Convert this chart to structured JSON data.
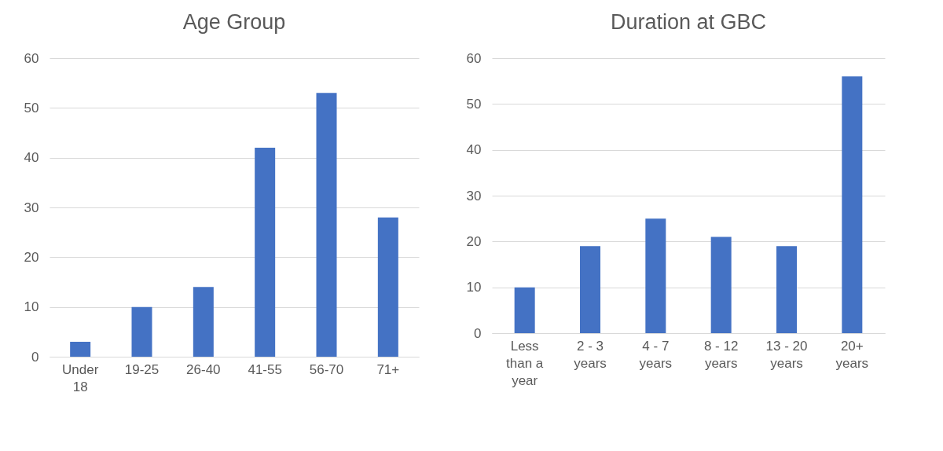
{
  "chart_data": [
    {
      "type": "bar",
      "title": "Age Group",
      "categories": [
        "Under 18",
        "19-25",
        "26-40",
        "41-55",
        "56-70",
        "71+"
      ],
      "values": [
        3,
        10,
        14,
        42,
        53,
        28
      ],
      "color": "#4472c4",
      "ylim": [
        0,
        60
      ],
      "yticks": [
        0,
        10,
        20,
        30,
        40,
        50,
        60
      ],
      "grid": "y"
    },
    {
      "type": "bar",
      "title": "Duration at GBC",
      "categories": [
        "Less than a year",
        "2 - 3 years",
        "4 - 7 years",
        "8 - 12 years",
        "13 - 20 years",
        "20+ years"
      ],
      "values": [
        10,
        19,
        25,
        21,
        19,
        56
      ],
      "color": "#4472c4",
      "ylim": [
        0,
        60
      ],
      "yticks": [
        0,
        10,
        20,
        30,
        40,
        50,
        60
      ],
      "grid": "y"
    }
  ]
}
